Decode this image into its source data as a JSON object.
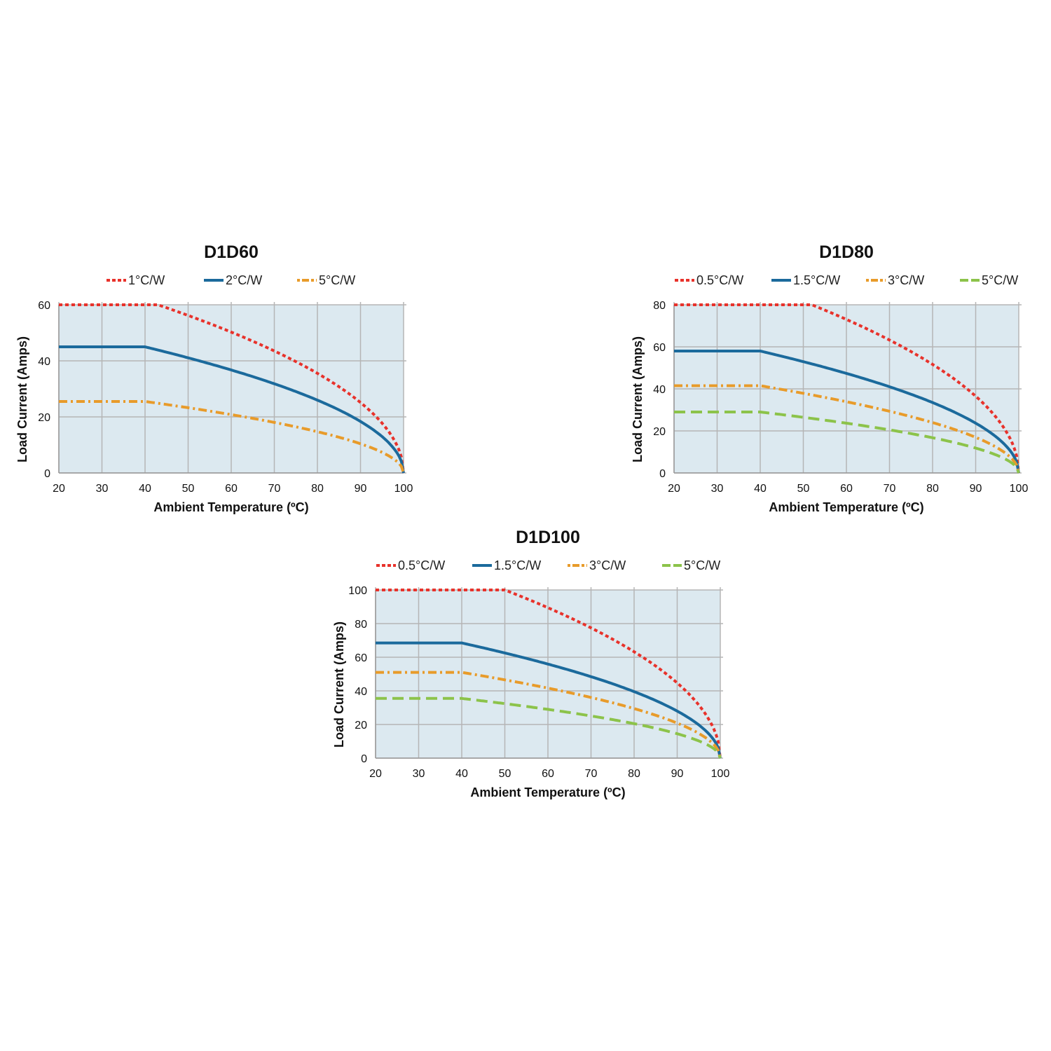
{
  "colors": {
    "plot_bg": "#dce9f0",
    "grid": "#b5b5b5",
    "series_0_5": "#e8322b",
    "series_1": "#e8322b",
    "series_1_5": "#1b6a9c",
    "series_2": "#1b6a9c",
    "series_3": "#e89b2a",
    "series_5_orange": "#e89b2a",
    "series_5_green": "#8cc34a"
  },
  "chart_data": [
    {
      "type": "line",
      "title": "D1D60",
      "xlabel": "Ambient Temperature (ºC)",
      "ylabel": "Load Current (Amps)",
      "xlim": [
        20,
        100
      ],
      "ylim": [
        0,
        60
      ],
      "xticks": [
        20,
        30,
        40,
        50,
        60,
        70,
        80,
        90,
        100
      ],
      "yticks": [
        0,
        20,
        40,
        60
      ],
      "grid": true,
      "legend_position": "top",
      "series": [
        {
          "name": "1°C/W",
          "style": "dotted",
          "color": "#e8322b",
          "flat": 60,
          "knee": 43
        },
        {
          "name": "2°C/W",
          "style": "solid",
          "color": "#1b6a9c",
          "flat": 45,
          "knee": 40
        },
        {
          "name": "5°C/W",
          "style": "dashdot",
          "color": "#e89b2a",
          "flat": 25.5,
          "knee": 40
        }
      ]
    },
    {
      "type": "line",
      "title": "D1D80",
      "xlabel": "Ambient Temperature (ºC)",
      "ylabel": "Load Current (Amps)",
      "xlim": [
        20,
        100
      ],
      "ylim": [
        0,
        80
      ],
      "xticks": [
        20,
        30,
        40,
        50,
        60,
        70,
        80,
        90,
        100
      ],
      "yticks": [
        0,
        20,
        40,
        60,
        80
      ],
      "grid": true,
      "legend_position": "top",
      "series": [
        {
          "name": "0.5°C/W",
          "style": "dotted",
          "color": "#e8322b",
          "flat": 80,
          "knee": 52
        },
        {
          "name": "1.5°C/W",
          "style": "solid",
          "color": "#1b6a9c",
          "flat": 58,
          "knee": 40
        },
        {
          "name": "3°C/W",
          "style": "dashdot",
          "color": "#e89b2a",
          "flat": 41.5,
          "knee": 40
        },
        {
          "name": "5°C/W",
          "style": "dashed",
          "color": "#8cc34a",
          "flat": 29,
          "knee": 40
        }
      ]
    },
    {
      "type": "line",
      "title": "D1D100",
      "xlabel": "Ambient Temperature (ºC)",
      "ylabel": "Load Current (Amps)",
      "xlim": [
        20,
        100
      ],
      "ylim": [
        0,
        100
      ],
      "xticks": [
        20,
        30,
        40,
        50,
        60,
        70,
        80,
        90,
        100
      ],
      "yticks": [
        0,
        20,
        40,
        60,
        80,
        100
      ],
      "grid": true,
      "legend_position": "top",
      "series": [
        {
          "name": "0.5°C/W",
          "style": "dotted",
          "color": "#e8322b",
          "flat": 100,
          "knee": 50
        },
        {
          "name": "1.5°C/W",
          "style": "solid",
          "color": "#1b6a9c",
          "flat": 68.5,
          "knee": 40
        },
        {
          "name": "3°C/W",
          "style": "dashdot",
          "color": "#e89b2a",
          "flat": 51,
          "knee": 40
        },
        {
          "name": "5°C/W",
          "style": "dashed",
          "color": "#8cc34a",
          "flat": 35.5,
          "knee": 40
        }
      ]
    }
  ]
}
